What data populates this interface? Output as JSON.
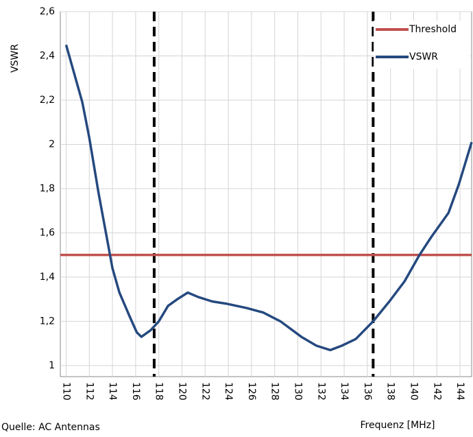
{
  "chart_data": {
    "type": "line",
    "y_label": "VSWR",
    "x_label": "Frequenz [MHz]",
    "source": "Quelle: AC Antennas",
    "xlim": [
      109.5,
      145
    ],
    "xticks": [
      110,
      112,
      114,
      116,
      118,
      120,
      122,
      124,
      126,
      128,
      130,
      132,
      134,
      136,
      138,
      140,
      142,
      144
    ],
    "ylim": [
      0.95,
      2.6
    ],
    "yticks": [
      1,
      {
        "value": 1.2,
        "label": "1,2"
      },
      {
        "value": 1.4,
        "label": "1,4"
      },
      {
        "value": 1.6,
        "label": "1,6"
      },
      {
        "value": 1.8,
        "label": "1,8"
      },
      2,
      {
        "value": 2.2,
        "label": "2,2"
      },
      {
        "value": 2.4,
        "label": "2,4"
      },
      {
        "value": 2.6,
        "label": "2,6"
      }
    ],
    "grid": true,
    "vlines": [
      117.6,
      136.5
    ],
    "legend": "upper right",
    "series": [
      {
        "name": "Threshold",
        "color": "#c0504d",
        "x": [
          109.5,
          145
        ],
        "values": [
          1.5,
          1.5
        ]
      },
      {
        "name": "VSWR",
        "color": "#25497f",
        "x": [
          110.0,
          111.4,
          112.0,
          112.8,
          113.4,
          114.0,
          114.6,
          115.5,
          116.1,
          116.5,
          117.3,
          118.0,
          118.8,
          119.6,
          120.5,
          121.4,
          122.6,
          123.8,
          125.6,
          127.0,
          128.5,
          130.3,
          131.6,
          132.8,
          133.8,
          135.0,
          136.5,
          137.9,
          139.2,
          140.5,
          141.5,
          143.0,
          143.9,
          145.0
        ],
        "values": [
          2.45,
          2.19,
          2.03,
          1.78,
          1.61,
          1.44,
          1.33,
          1.22,
          1.15,
          1.13,
          1.16,
          1.2,
          1.27,
          1.3,
          1.33,
          1.31,
          1.29,
          1.28,
          1.26,
          1.24,
          1.2,
          1.13,
          1.09,
          1.07,
          1.09,
          1.12,
          1.2,
          1.29,
          1.38,
          1.5,
          1.58,
          1.69,
          1.82,
          2.01
        ]
      }
    ]
  }
}
